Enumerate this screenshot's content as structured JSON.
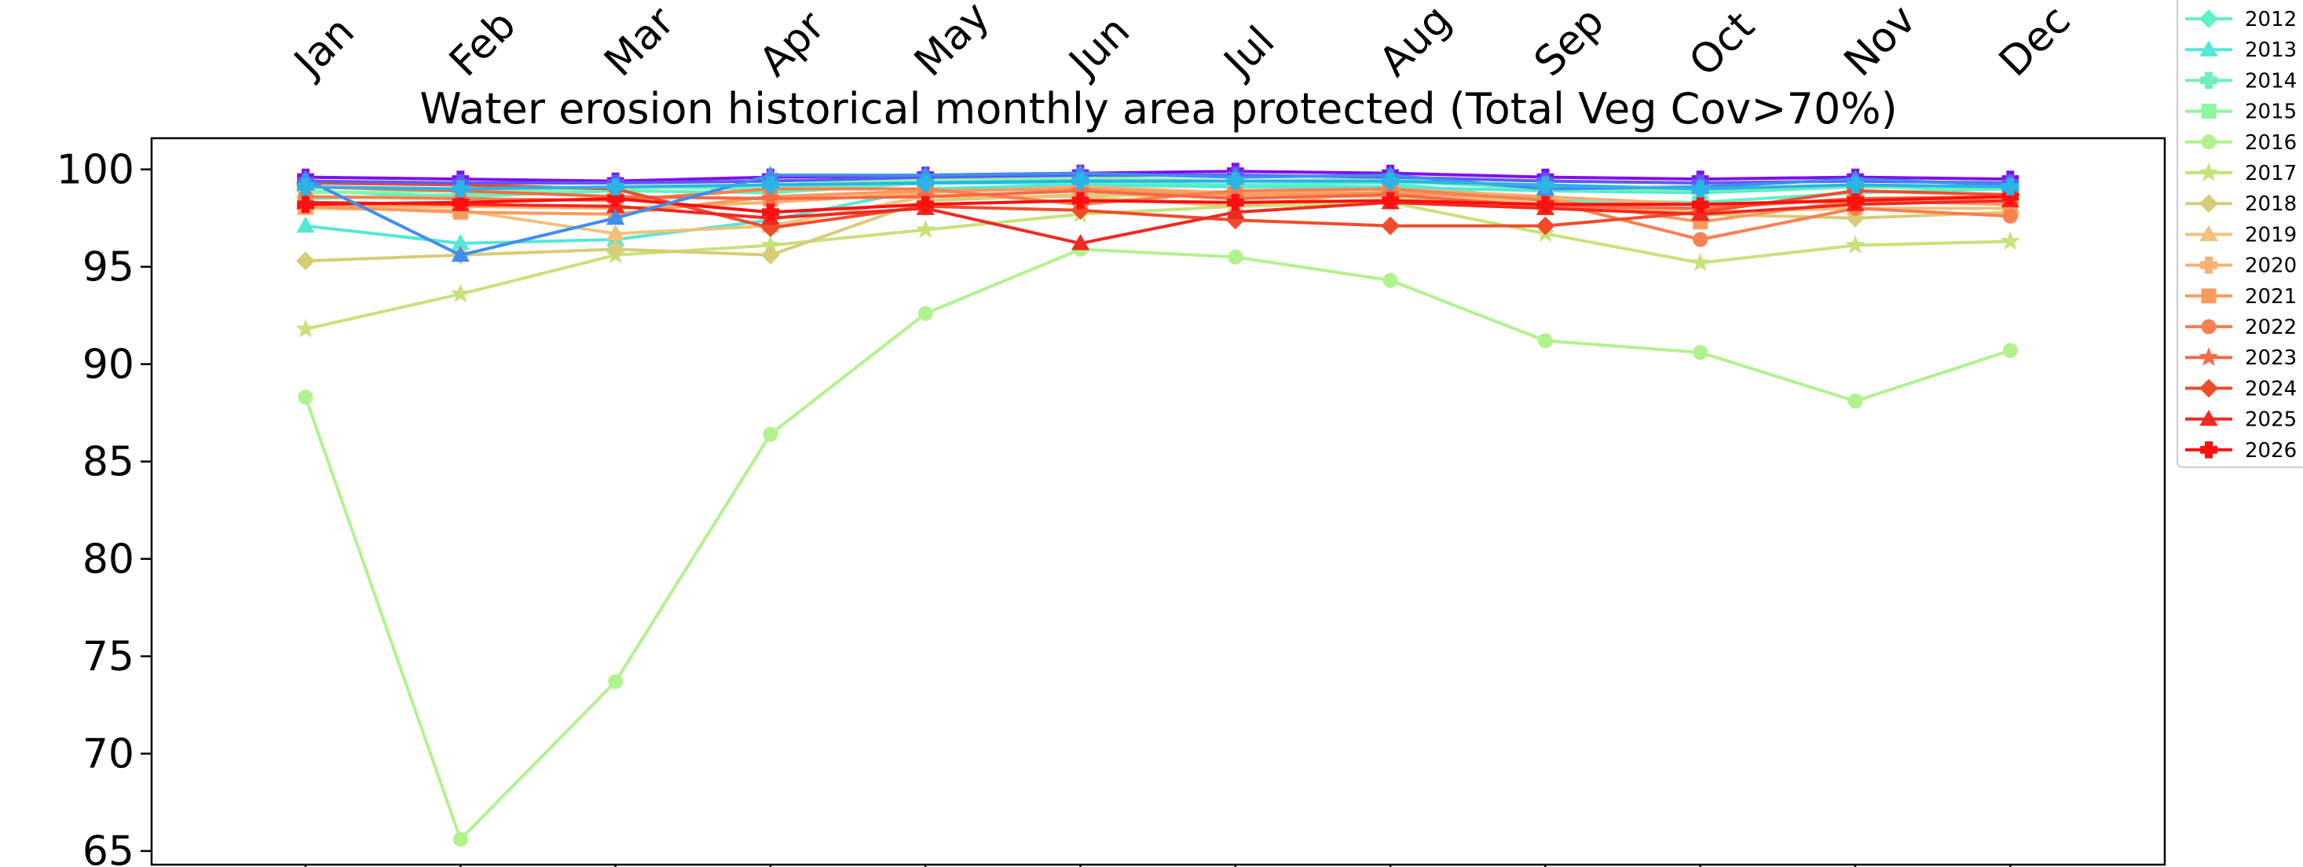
{
  "chart_data": {
    "type": "line",
    "title": "Water erosion historical monthly area protected (Total Veg Cov>70%)",
    "xlabel": "",
    "ylabel": "",
    "categories": [
      "Jan",
      "Feb",
      "Mar",
      "Apr",
      "May",
      "Jun",
      "Jul",
      "Aug",
      "Sep",
      "Oct",
      "Nov",
      "Dec"
    ],
    "ylim": [
      64.3,
      101.6
    ],
    "yticks": [
      65,
      70,
      75,
      80,
      85,
      90,
      95,
      100
    ],
    "grid": false,
    "legend_placement": "upper-right-outside",
    "series": [
      {
        "name": "2012",
        "color": "#5ff2c8",
        "marker": "diamond",
        "values": [
          98.9,
          98.6,
          98.9,
          98.8,
          99.3,
          99.3,
          99.2,
          99.3,
          98.4,
          98.3,
          98.8,
          99.0
        ]
      },
      {
        "name": "2013",
        "color": "#54e8d6",
        "marker": "triangle",
        "values": [
          97.1,
          96.2,
          96.4,
          97.4,
          99.0,
          99.2,
          99.1,
          99.1,
          98.9,
          98.8,
          99.1,
          99.0
        ]
      },
      {
        "name": "2014",
        "color": "#6ef0b8",
        "marker": "plus",
        "values": [
          98.5,
          98.7,
          99.1,
          99.0,
          99.4,
          99.5,
          99.4,
          99.4,
          99.0,
          98.9,
          99.1,
          99.0
        ]
      },
      {
        "name": "2015",
        "color": "#8ff5a0",
        "marker": "square",
        "values": [
          98.8,
          98.9,
          99.0,
          99.2,
          99.5,
          99.6,
          99.4,
          99.5,
          99.1,
          99.0,
          99.2,
          99.1
        ]
      },
      {
        "name": "2016",
        "color": "#b2f28e",
        "marker": "circle",
        "values": [
          88.3,
          65.6,
          73.7,
          86.4,
          92.6,
          95.9,
          95.5,
          94.3,
          91.2,
          90.6,
          88.1,
          90.7
        ]
      },
      {
        "name": "2017",
        "color": "#c8e27a",
        "marker": "star",
        "values": [
          91.8,
          93.6,
          95.6,
          96.1,
          96.9,
          97.7,
          98.1,
          98.3,
          96.7,
          95.2,
          96.1,
          96.3
        ]
      },
      {
        "name": "2018",
        "color": "#d8cc78",
        "marker": "diamond",
        "values": [
          95.3,
          95.6,
          95.9,
          95.6,
          98.4,
          98.7,
          98.6,
          98.6,
          98.1,
          97.7,
          97.5,
          97.8
        ]
      },
      {
        "name": "2019",
        "color": "#f0c27c",
        "marker": "triangle",
        "values": [
          98.0,
          97.9,
          96.7,
          97.1,
          98.6,
          98.6,
          98.1,
          98.9,
          98.2,
          97.8,
          98.0,
          98.0
        ]
      },
      {
        "name": "2020",
        "color": "#f9b070",
        "marker": "plus",
        "values": [
          98.1,
          98.1,
          98.0,
          98.3,
          98.8,
          99.1,
          98.8,
          99.0,
          98.6,
          98.2,
          98.4,
          98.4
        ]
      },
      {
        "name": "2021",
        "color": "#fa9a5e",
        "marker": "square",
        "values": [
          98.1,
          97.8,
          97.7,
          98.6,
          98.9,
          99.0,
          98.7,
          98.8,
          98.5,
          97.3,
          98.4,
          98.2
        ]
      },
      {
        "name": "2022",
        "color": "#f98050",
        "marker": "circle",
        "values": [
          98.6,
          98.5,
          98.4,
          99.0,
          99.0,
          98.2,
          98.9,
          99.0,
          98.4,
          96.4,
          98.0,
          97.6
        ]
      },
      {
        "name": "2023",
        "color": "#f76a44",
        "marker": "star",
        "values": [
          99.1,
          98.9,
          98.6,
          98.5,
          98.6,
          98.9,
          98.5,
          98.7,
          98.1,
          98.0,
          98.5,
          98.6
        ]
      },
      {
        "name": "2024",
        "color": "#f04c2c",
        "marker": "diamond",
        "values": [
          99.3,
          99.2,
          99.0,
          97.0,
          98.1,
          97.9,
          97.4,
          97.1,
          97.1,
          97.8,
          98.9,
          98.7
        ]
      },
      {
        "name": "2025",
        "color": "#f02a20",
        "marker": "triangle",
        "values": [
          98.3,
          98.2,
          98.1,
          97.5,
          98.0,
          96.2,
          97.8,
          98.3,
          98.0,
          97.7,
          98.2,
          98.4
        ]
      },
      {
        "name": "2026",
        "color": "#ff1010",
        "marker": "plus",
        "values": [
          98.2,
          98.3,
          98.5,
          97.8,
          98.2,
          98.4,
          98.3,
          98.4,
          98.2,
          98.2,
          98.4,
          98.6
        ]
      },
      {
        "name": "",
        "color": "#7f10f0",
        "marker": "plus",
        "values": [
          99.6,
          99.5,
          99.4,
          99.6,
          99.7,
          99.8,
          99.9,
          99.8,
          99.6,
          99.5,
          99.6,
          99.5
        ]
      },
      {
        "name": "",
        "color": "#5c5cf4",
        "marker": "plus",
        "values": [
          99.4,
          99.3,
          99.3,
          99.4,
          99.6,
          99.7,
          99.7,
          99.6,
          99.4,
          99.3,
          99.4,
          99.3
        ]
      },
      {
        "name": "",
        "color": "#3f8ef0",
        "marker": "triangle",
        "values": [
          99.5,
          95.6,
          97.5,
          99.7,
          99.7,
          99.8,
          99.6,
          99.7,
          99.0,
          99.1,
          99.5,
          99.2
        ]
      },
      {
        "name": "",
        "color": "#2bb4e6",
        "marker": "plus",
        "values": [
          99.1,
          99.0,
          99.1,
          99.2,
          99.3,
          99.4,
          99.4,
          99.4,
          99.2,
          99.0,
          99.2,
          99.1
        ]
      }
    ]
  }
}
